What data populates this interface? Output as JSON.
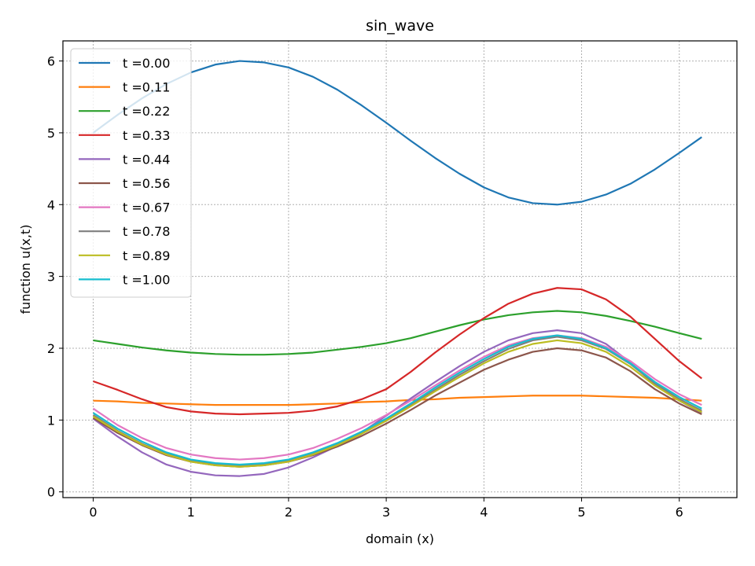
{
  "chart_data": {
    "type": "line",
    "title": "sin_wave",
    "xlabel": "domain (x)",
    "ylabel": "function u(x,t)",
    "xlim": [
      -0.31,
      6.59
    ],
    "ylim": [
      -0.08,
      6.28
    ],
    "xticks": [
      0,
      1,
      2,
      3,
      4,
      5,
      6
    ],
    "yticks": [
      0,
      1,
      2,
      3,
      4,
      5,
      6
    ],
    "grid": true,
    "legend_position": "upper-left",
    "x": [
      0,
      0.25,
      0.5,
      0.75,
      1,
      1.25,
      1.5,
      1.75,
      2,
      2.25,
      2.5,
      2.75,
      3,
      3.25,
      3.5,
      3.75,
      4,
      4.25,
      4.5,
      4.75,
      5,
      5.25,
      5.5,
      5.75,
      6,
      6.23
    ],
    "series": [
      {
        "name": "t =0.00",
        "color": "#1f77b4",
        "values": [
          5.0,
          5.25,
          5.48,
          5.68,
          5.84,
          5.95,
          6.0,
          5.98,
          5.91,
          5.78,
          5.6,
          5.38,
          5.14,
          4.89,
          4.65,
          4.43,
          4.24,
          4.1,
          4.02,
          4.0,
          4.04,
          4.14,
          4.29,
          4.49,
          4.72,
          4.94
        ]
      },
      {
        "name": "t =0.11",
        "color": "#ff7f0e",
        "values": [
          1.27,
          1.26,
          1.24,
          1.23,
          1.22,
          1.21,
          1.21,
          1.21,
          1.21,
          1.22,
          1.23,
          1.25,
          1.26,
          1.28,
          1.29,
          1.31,
          1.32,
          1.33,
          1.34,
          1.34,
          1.34,
          1.33,
          1.32,
          1.31,
          1.29,
          1.27
        ]
      },
      {
        "name": "t =0.22",
        "color": "#2ca02c",
        "values": [
          2.11,
          2.06,
          2.01,
          1.97,
          1.94,
          1.92,
          1.91,
          1.91,
          1.92,
          1.94,
          1.98,
          2.02,
          2.07,
          2.14,
          2.23,
          2.32,
          2.4,
          2.46,
          2.5,
          2.52,
          2.5,
          2.45,
          2.38,
          2.3,
          2.21,
          2.13
        ]
      },
      {
        "name": "t =0.33",
        "color": "#d62728",
        "values": [
          1.54,
          1.42,
          1.29,
          1.18,
          1.12,
          1.09,
          1.08,
          1.09,
          1.1,
          1.13,
          1.19,
          1.29,
          1.43,
          1.67,
          1.94,
          2.19,
          2.42,
          2.62,
          2.76,
          2.84,
          2.82,
          2.68,
          2.44,
          2.13,
          1.82,
          1.58
        ]
      },
      {
        "name": "t =0.44",
        "color": "#9467bd",
        "values": [
          1.02,
          0.77,
          0.55,
          0.38,
          0.28,
          0.23,
          0.22,
          0.25,
          0.34,
          0.48,
          0.64,
          0.83,
          1.06,
          1.3,
          1.53,
          1.75,
          1.95,
          2.11,
          2.21,
          2.25,
          2.21,
          2.06,
          1.8,
          1.49,
          1.27,
          1.1
        ]
      },
      {
        "name": "t =0.56",
        "color": "#8c564b",
        "values": [
          1.03,
          0.82,
          0.65,
          0.51,
          0.42,
          0.37,
          0.35,
          0.37,
          0.42,
          0.51,
          0.63,
          0.78,
          0.95,
          1.14,
          1.34,
          1.52,
          1.7,
          1.84,
          1.95,
          2.0,
          1.97,
          1.87,
          1.68,
          1.43,
          1.23,
          1.08
        ]
      },
      {
        "name": "t =0.67",
        "color": "#e377c2",
        "values": [
          1.16,
          0.93,
          0.75,
          0.61,
          0.52,
          0.47,
          0.45,
          0.47,
          0.52,
          0.61,
          0.74,
          0.89,
          1.07,
          1.27,
          1.48,
          1.69,
          1.88,
          2.04,
          2.14,
          2.18,
          2.14,
          2.02,
          1.82,
          1.57,
          1.36,
          1.21
        ]
      },
      {
        "name": "t =0.78",
        "color": "#7f7f7f",
        "values": [
          1.07,
          0.85,
          0.67,
          0.53,
          0.43,
          0.38,
          0.36,
          0.38,
          0.43,
          0.53,
          0.66,
          0.82,
          1.0,
          1.21,
          1.42,
          1.63,
          1.82,
          1.99,
          2.11,
          2.16,
          2.11,
          1.99,
          1.78,
          1.51,
          1.29,
          1.13
        ]
      },
      {
        "name": "t =0.89",
        "color": "#bcbd22",
        "values": [
          1.05,
          0.84,
          0.66,
          0.52,
          0.42,
          0.37,
          0.35,
          0.37,
          0.42,
          0.52,
          0.65,
          0.81,
          0.99,
          1.19,
          1.4,
          1.6,
          1.79,
          1.95,
          2.06,
          2.11,
          2.07,
          1.95,
          1.74,
          1.48,
          1.27,
          1.11
        ]
      },
      {
        "name": "t =1.00",
        "color": "#17becf",
        "values": [
          1.1,
          0.88,
          0.7,
          0.55,
          0.45,
          0.4,
          0.38,
          0.4,
          0.45,
          0.55,
          0.68,
          0.84,
          1.02,
          1.23,
          1.45,
          1.66,
          1.85,
          2.02,
          2.13,
          2.18,
          2.13,
          2.0,
          1.79,
          1.53,
          1.32,
          1.16
        ]
      }
    ]
  }
}
